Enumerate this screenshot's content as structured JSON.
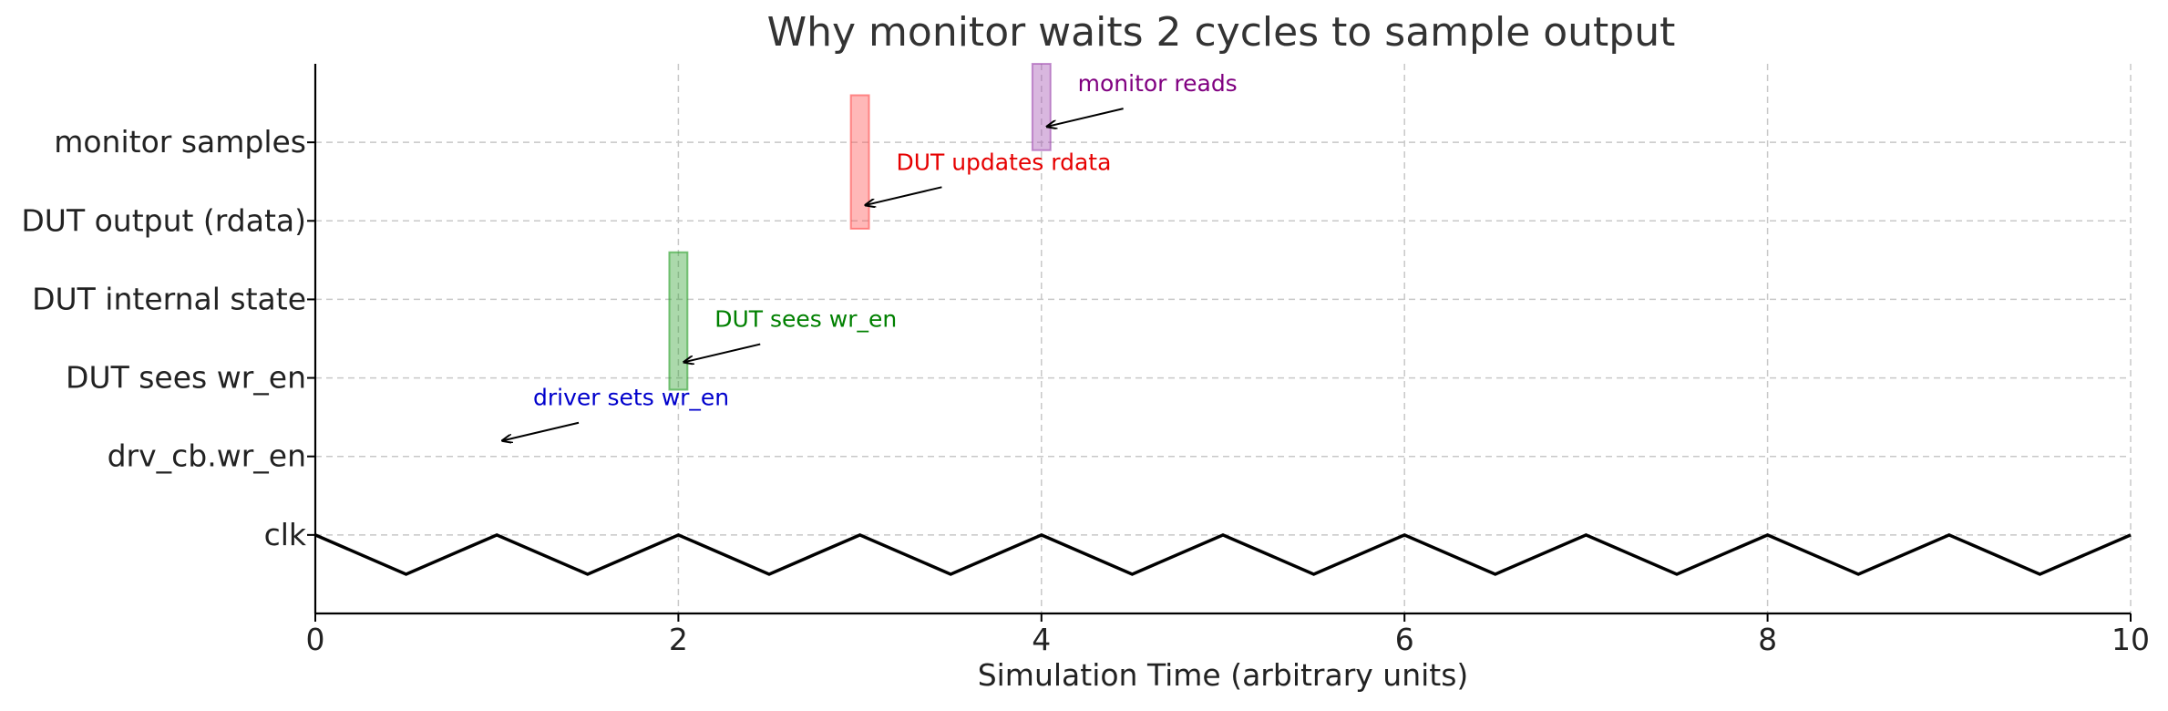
{
  "chart_data": {
    "type": "line",
    "title": "Why monitor waits 2 cycles to sample output",
    "xlabel": "Simulation Time (arbitrary units)",
    "ylabel": "",
    "xlim": [
      0,
      10
    ],
    "ylim": [
      -1,
      6
    ],
    "xticks": [
      0,
      2,
      4,
      6,
      8,
      10
    ],
    "yticks": [
      {
        "value": 0,
        "label": "clk"
      },
      {
        "value": 1,
        "label": "drv_cb.wr_en"
      },
      {
        "value": 2,
        "label": "DUT sees wr_en"
      },
      {
        "value": 3,
        "label": "DUT internal state"
      },
      {
        "value": 4,
        "label": "DUT output (rdata)"
      },
      {
        "value": 5,
        "label": "monitor samples"
      }
    ],
    "grid": true,
    "clk_series": {
      "x": [
        0,
        0.5,
        1,
        1.5,
        2,
        2.5,
        3,
        3.5,
        4,
        4.5,
        5,
        5.5,
        6,
        6.5,
        7,
        7.5,
        8,
        8.5,
        9,
        9.5,
        10
      ],
      "y": [
        0,
        -0.5,
        0,
        -0.5,
        0,
        -0.5,
        0,
        -0.5,
        0,
        -0.5,
        0,
        -0.5,
        0,
        -0.5,
        0,
        -0.5,
        0,
        -0.5,
        0,
        -0.5,
        0
      ],
      "color": "#000000"
    },
    "highlights": [
      {
        "x": 2,
        "y_from": 1.85,
        "y_to": 3.6,
        "width": 0.1,
        "color": "#2ca02c"
      },
      {
        "x": 3,
        "y_from": 3.9,
        "y_to": 5.6,
        "width": 0.1,
        "color": "#ff4d4d"
      },
      {
        "x": 4,
        "y_from": 4.9,
        "y_to": 6.0,
        "width": 0.1,
        "color": "#a04cb0"
      }
    ],
    "annotations": [
      {
        "text": "driver sets wr_en",
        "text_x": 1.2,
        "text_y": 1.65,
        "arrow_x": 1.03,
        "arrow_y": 1.2,
        "color": "#0000cc"
      },
      {
        "text": "DUT sees wr_en",
        "text_x": 2.2,
        "text_y": 2.65,
        "arrow_x": 2.03,
        "arrow_y": 2.2,
        "color": "#008000"
      },
      {
        "text": "DUT updates rdata",
        "text_x": 3.2,
        "text_y": 4.65,
        "arrow_x": 3.03,
        "arrow_y": 4.2,
        "color": "#e60000"
      },
      {
        "text": "monitor reads",
        "text_x": 4.2,
        "text_y": 5.65,
        "arrow_x": 4.03,
        "arrow_y": 5.2,
        "color": "#800080"
      }
    ]
  }
}
